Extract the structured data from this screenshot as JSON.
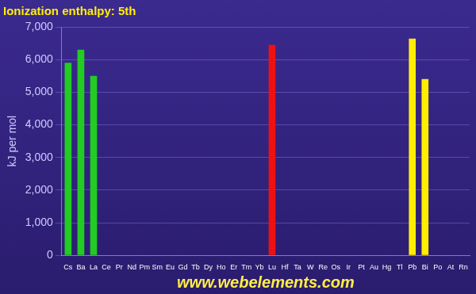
{
  "chart_data": {
    "type": "bar",
    "title": "Ionization enthalpy: 5th",
    "y_label": "kJ per mol",
    "categories": [
      "Cs",
      "Ba",
      "La",
      "Ce",
      "Pr",
      "Nd",
      "Pm",
      "Sm",
      "Eu",
      "Gd",
      "Tb",
      "Dy",
      "Ho",
      "Er",
      "Tm",
      "Yb",
      "Lu",
      "Hf",
      "Ta",
      "W",
      "Re",
      "Os",
      "Ir",
      "Pt",
      "Au",
      "Hg",
      "Tl",
      "Pb",
      "Bi",
      "Po",
      "At",
      "Rn"
    ],
    "values": [
      5900,
      6300,
      5500,
      null,
      null,
      null,
      null,
      null,
      null,
      null,
      null,
      null,
      null,
      null,
      null,
      null,
      6445,
      null,
      null,
      null,
      null,
      null,
      null,
      null,
      null,
      null,
      null,
      6640,
      5400,
      null,
      null,
      null
    ],
    "colors": [
      "#22cc22",
      "#22cc22",
      "#22cc22",
      "#22aa44",
      "#22aa44",
      "#22aa44",
      "#22aa44",
      "#22aa44",
      "#22aa44",
      "#22aa44",
      "#22aa44",
      "#22aa44",
      "#22aa44",
      "#22aa44",
      "#22aa44",
      "#22aa44",
      "#ee1111",
      "#ee1111",
      "#ee1111",
      "#ee1111",
      "#ee1111",
      "#ee1111",
      "#ee1111",
      "#ee1111",
      "#ee1111",
      "#ee1111",
      "#ffee00",
      "#ffee00",
      "#ffee00",
      "#ffee00",
      "#ffee00",
      "#ffee00"
    ],
    "ylim": [
      0,
      7000
    ],
    "yticks": [
      0,
      {
        "value": 1000,
        "label": "1,000"
      },
      {
        "value": 2000,
        "label": "2,000"
      },
      {
        "value": 3000,
        "label": "3,000"
      },
      {
        "value": 4000,
        "label": "4,000"
      },
      {
        "value": 5000,
        "label": "5,000"
      },
      {
        "value": 6000,
        "label": "6,000"
      },
      {
        "value": 7000,
        "label": "7,000"
      }
    ],
    "grid": true,
    "annotations": [
      "www.webelements.com"
    ]
  }
}
